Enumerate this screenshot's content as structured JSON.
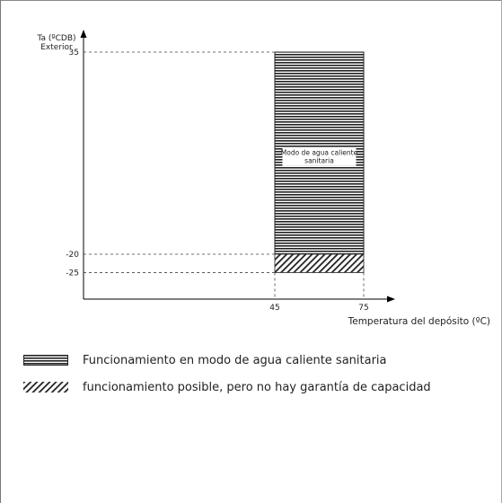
{
  "chart_data": {
    "type": "area",
    "y_axis": {
      "label_line1": "Ta (ºCDB)",
      "label_line2": "Exterior",
      "ticks": [
        35,
        -20,
        -25
      ]
    },
    "x_axis": {
      "label": "Temperatura del depósito  (ºC)",
      "ticks": [
        45,
        75
      ]
    },
    "regions": [
      {
        "pattern": "horizontal-lines",
        "x_range": [
          45,
          75
        ],
        "y_range": [
          -20,
          35
        ],
        "label_line1": "Modo de agua caliente",
        "label_line2": "sanitaria"
      },
      {
        "pattern": "diagonal-hatch",
        "x_range": [
          45,
          75
        ],
        "y_range": [
          -25,
          -20
        ]
      }
    ],
    "legend_placement": "bottom"
  },
  "legend": [
    {
      "pattern": "horizontal-lines",
      "text": "Funcionamiento en modo de agua caliente sanitaria"
    },
    {
      "pattern": "diagonal-hatch",
      "text": "funcionamiento posible, pero no hay garantía de capacidad"
    }
  ]
}
